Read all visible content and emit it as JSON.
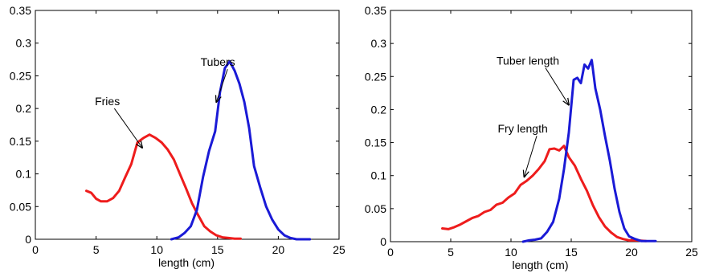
{
  "chart_data": [
    {
      "type": "line",
      "title": "",
      "xlabel": "length (cm)",
      "ylabel": "",
      "xlim": [
        0,
        25
      ],
      "ylim": [
        0,
        0.35
      ],
      "xticks": [
        "0",
        "5",
        "10",
        "15",
        "20",
        "25"
      ],
      "yticks": [
        "0",
        "0.05",
        "0.1",
        "0.15",
        "0.2",
        "0.25",
        "0.3",
        "0.35"
      ],
      "grid": false,
      "series": [
        {
          "color": "#ee1c1c",
          "points": [
            [
              4.2,
              0.074
            ],
            [
              4.6,
              0.071
            ],
            [
              5.0,
              0.062
            ],
            [
              5.4,
              0.058
            ],
            [
              5.9,
              0.058
            ],
            [
              6.4,
              0.063
            ],
            [
              6.9,
              0.074
            ],
            [
              7.4,
              0.095
            ],
            [
              7.9,
              0.115
            ],
            [
              8.4,
              0.148
            ],
            [
              8.9,
              0.155
            ],
            [
              9.4,
              0.16
            ],
            [
              9.9,
              0.155
            ],
            [
              10.4,
              0.148
            ],
            [
              10.9,
              0.137
            ],
            [
              11.4,
              0.122
            ],
            [
              11.9,
              0.1
            ],
            [
              12.4,
              0.078
            ],
            [
              12.9,
              0.055
            ],
            [
              13.4,
              0.037
            ],
            [
              13.9,
              0.02
            ],
            [
              14.4,
              0.012
            ],
            [
              14.9,
              0.006
            ],
            [
              15.4,
              0.003
            ],
            [
              15.9,
              0.002
            ],
            [
              16.4,
              0.001
            ],
            [
              16.9,
              0.001
            ]
          ]
        },
        {
          "color": "#1a1ad6",
          "points": [
            [
              11.2,
              0.0
            ],
            [
              11.8,
              0.003
            ],
            [
              12.3,
              0.01
            ],
            [
              12.8,
              0.02
            ],
            [
              13.3,
              0.045
            ],
            [
              13.8,
              0.095
            ],
            [
              14.3,
              0.135
            ],
            [
              14.8,
              0.165
            ],
            [
              15.2,
              0.225
            ],
            [
              15.6,
              0.262
            ],
            [
              16.0,
              0.272
            ],
            [
              16.4,
              0.258
            ],
            [
              16.8,
              0.238
            ],
            [
              17.2,
              0.21
            ],
            [
              17.6,
              0.17
            ],
            [
              18.0,
              0.112
            ],
            [
              18.5,
              0.08
            ],
            [
              19.0,
              0.05
            ],
            [
              19.5,
              0.03
            ],
            [
              20.0,
              0.015
            ],
            [
              20.5,
              0.006
            ],
            [
              21.0,
              0.002
            ],
            [
              21.5,
              0.0
            ],
            [
              22.0,
              0.0
            ],
            [
              22.6,
              0.0
            ]
          ]
        }
      ],
      "annotations": [
        {
          "text": "Tubers",
          "label_at": [
            13.6,
            0.265
          ],
          "arrow_to": [
            14.9,
            0.21
          ]
        },
        {
          "text": "Fries",
          "label_at": [
            4.9,
            0.205
          ],
          "arrow_to": [
            8.8,
            0.14
          ]
        }
      ]
    },
    {
      "type": "line",
      "title": "",
      "xlabel": "length (cm)",
      "ylabel": "",
      "xlim": [
        0,
        25
      ],
      "ylim": [
        0,
        0.35
      ],
      "xticks": [
        "0",
        "5",
        "10",
        "15",
        "20",
        "25"
      ],
      "yticks": [
        "0",
        "0.05",
        "0.1",
        "0.15",
        "0.2",
        "0.25",
        "0.3",
        "0.35"
      ],
      "grid": false,
      "series": [
        {
          "color": "#ee1c1c",
          "points": [
            [
              4.3,
              0.02
            ],
            [
              4.8,
              0.019
            ],
            [
              5.3,
              0.022
            ],
            [
              5.8,
              0.026
            ],
            [
              6.3,
              0.031
            ],
            [
              6.8,
              0.036
            ],
            [
              7.3,
              0.039
            ],
            [
              7.8,
              0.045
            ],
            [
              8.3,
              0.048
            ],
            [
              8.8,
              0.056
            ],
            [
              9.3,
              0.059
            ],
            [
              9.8,
              0.067
            ],
            [
              10.3,
              0.073
            ],
            [
              10.8,
              0.086
            ],
            [
              11.3,
              0.092
            ],
            [
              11.8,
              0.1
            ],
            [
              12.3,
              0.11
            ],
            [
              12.8,
              0.122
            ],
            [
              13.2,
              0.14
            ],
            [
              13.6,
              0.141
            ],
            [
              14.0,
              0.138
            ],
            [
              14.4,
              0.145
            ],
            [
              14.8,
              0.128
            ],
            [
              15.3,
              0.115
            ],
            [
              15.8,
              0.095
            ],
            [
              16.3,
              0.077
            ],
            [
              16.8,
              0.055
            ],
            [
              17.3,
              0.037
            ],
            [
              17.8,
              0.023
            ],
            [
              18.3,
              0.014
            ],
            [
              18.8,
              0.007
            ],
            [
              19.3,
              0.004
            ],
            [
              19.8,
              0.002
            ],
            [
              20.5,
              0.002
            ],
            [
              21.2,
              0.001
            ]
          ]
        },
        {
          "color": "#1a1ad6",
          "points": [
            [
              11.0,
              0.0
            ],
            [
              11.5,
              0.002
            ],
            [
              12.0,
              0.003
            ],
            [
              12.5,
              0.005
            ],
            [
              13.0,
              0.015
            ],
            [
              13.5,
              0.03
            ],
            [
              14.0,
              0.065
            ],
            [
              14.4,
              0.11
            ],
            [
              14.8,
              0.165
            ],
            [
              15.2,
              0.245
            ],
            [
              15.5,
              0.248
            ],
            [
              15.8,
              0.24
            ],
            [
              16.1,
              0.268
            ],
            [
              16.4,
              0.262
            ],
            [
              16.7,
              0.275
            ],
            [
              17.0,
              0.232
            ],
            [
              17.4,
              0.2
            ],
            [
              17.8,
              0.16
            ],
            [
              18.2,
              0.123
            ],
            [
              18.6,
              0.08
            ],
            [
              19.0,
              0.045
            ],
            [
              19.4,
              0.02
            ],
            [
              19.8,
              0.008
            ],
            [
              20.3,
              0.004
            ],
            [
              20.8,
              0.001
            ],
            [
              21.3,
              0.001
            ],
            [
              22.0,
              0.001
            ]
          ]
        }
      ],
      "annotations": [
        {
          "text": "Tuber length",
          "label_at": [
            8.8,
            0.268
          ],
          "arrow_to": [
            14.8,
            0.207
          ]
        },
        {
          "text": "Fry length",
          "label_at": [
            8.9,
            0.165
          ],
          "arrow_to": [
            11.1,
            0.098
          ]
        }
      ]
    }
  ]
}
